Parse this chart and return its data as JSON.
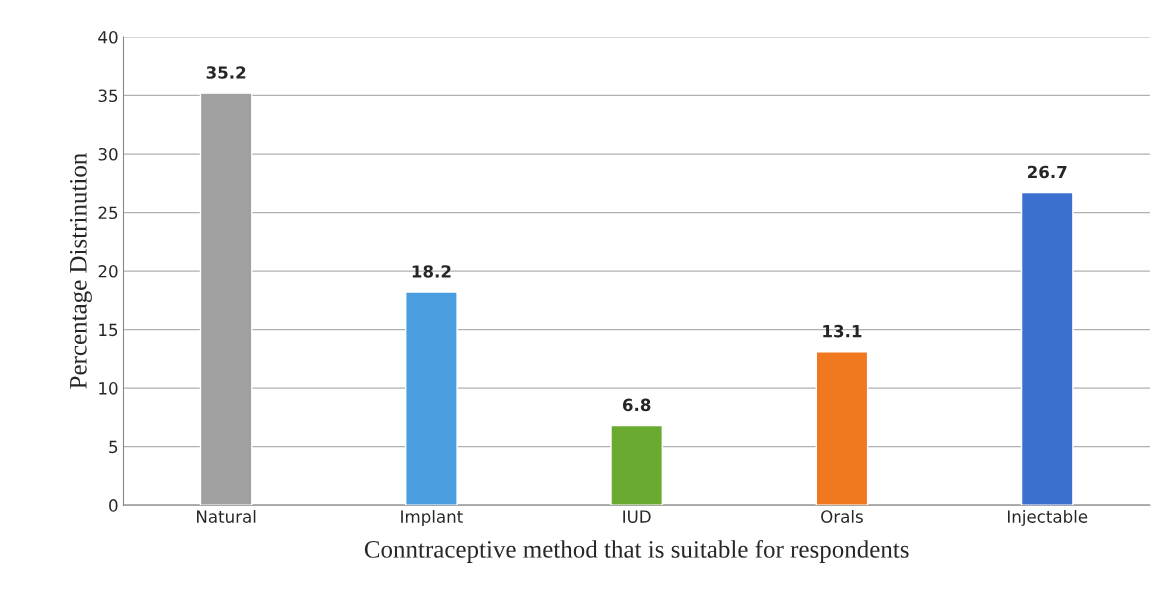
{
  "chart_data": {
    "type": "bar",
    "xlabel": "Conntraceptive method that is suitable for respondents",
    "ylabel": "Percentage Distrinution",
    "categories": [
      "Natural",
      "Implant",
      "IUD",
      "Orals",
      "Injectable"
    ],
    "values": [
      35.2,
      18.2,
      6.8,
      13.1,
      26.7
    ],
    "colors": [
      "#a0a0a0",
      "#4a9ee0",
      "#6aaa30",
      "#f07820",
      "#3a70d0"
    ],
    "ylim": [
      0,
      40
    ],
    "yticks": [
      0,
      5,
      10,
      15,
      20,
      25,
      30,
      35,
      40
    ],
    "grid": "y",
    "data_labels": true,
    "legend": false
  }
}
